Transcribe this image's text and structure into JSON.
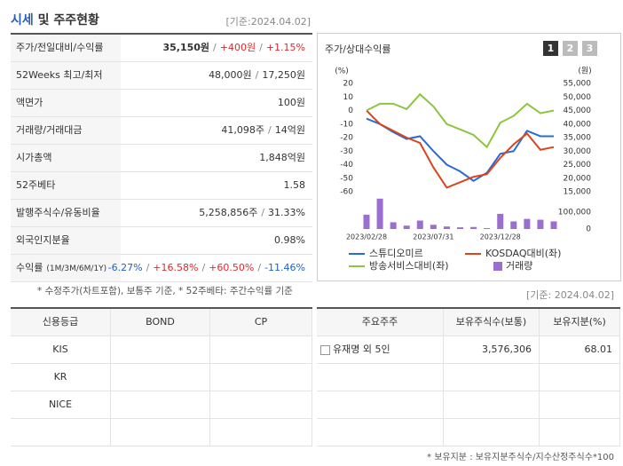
{
  "header": {
    "title": [
      "시세",
      "및 주주현황"
    ],
    "date": "[기준:2024.04.02]"
  },
  "quote_table": {
    "rows": [
      {
        "label": "주가/전일대비/수익률",
        "value": [
          "35,150원",
          "/",
          "+400원",
          "/",
          "+1.15%"
        ]
      },
      {
        "label": "52Weeks 최고/최저",
        "value": [
          "48,000원",
          "/",
          "17,250원"
        ]
      },
      {
        "label": "액면가",
        "value": [
          "100원"
        ]
      },
      {
        "label": "거래량/거래대금",
        "value": [
          "41,098주",
          "/",
          "14억원"
        ]
      },
      {
        "label": "시가총액",
        "value": [
          "1,848억원"
        ]
      },
      {
        "label": "52주베타",
        "value": [
          "1.58"
        ]
      },
      {
        "label": "발행주식수/유동비율",
        "value": [
          "5,258,856주",
          "/",
          "31.33%"
        ]
      },
      {
        "label": "외국인지분율",
        "value": [
          "0.98%"
        ]
      },
      {
        "label": "수익률",
        "sub": "(1M/3M/6M/1Y)",
        "value": [
          "-6.27%",
          "/",
          "+16.58%",
          "/",
          "+60.50%",
          "/",
          "-11.46%"
        ]
      }
    ]
  },
  "footnote": "* 수정주가(차트포함), 보통주 기준, * 52주베타: 주간수익률 기준",
  "chart_data": {
    "type": "line",
    "title": "주가/상대수익률",
    "buttons": [
      "1",
      "2",
      "3"
    ],
    "ylabel": "(%)",
    "y2label": "(원)",
    "categories": [
      "2023/02/28",
      null,
      null,
      null,
      null,
      "2023/07/31",
      null,
      null,
      null,
      null,
      "2023/12/28",
      null,
      null,
      null,
      null
    ],
    "ylim": [
      -60,
      20
    ],
    "yticks": [
      20,
      10,
      0,
      -10,
      -20,
      -30,
      -40,
      -50,
      -60
    ],
    "y2lim": [
      15000,
      55000
    ],
    "y2ticks": [
      {
        "value": 55000,
        "label": "55,000"
      },
      {
        "value": 50000,
        "label": "50,000"
      },
      {
        "value": 45000,
        "label": "45,000"
      },
      {
        "value": 40000,
        "label": "40,000"
      },
      {
        "value": 35000,
        "label": "35,000"
      },
      {
        "value": 30000,
        "label": "30,000"
      },
      {
        "value": 25000,
        "label": "25,000"
      },
      {
        "value": 20000,
        "label": "20,000"
      },
      {
        "value": 15000,
        "label": "15,000"
      }
    ],
    "y3lim": [
      0,
      200000
    ],
    "y3ticks": [
      0,
      {
        "value": 100000,
        "label": "100,000"
      }
    ],
    "series": [
      {
        "name": "스튜디오미르",
        "color": "#2a6ad6",
        "values": [
          -6,
          -10,
          -16,
          -21,
          -19,
          -30,
          -40,
          -45,
          -52,
          -46,
          -32,
          -30,
          -15,
          -19,
          -19
        ]
      },
      {
        "name": "KOSDAQ대비(좌)",
        "color": "#d9451e",
        "values": [
          0,
          -10,
          -15,
          -20,
          -24,
          -42,
          -57,
          -53,
          -49,
          -47,
          -35,
          -25,
          -17,
          -29,
          -27
        ]
      },
      {
        "name": "방송서비스대비(좌)",
        "color": "#8cc63e",
        "values": [
          0,
          5,
          5,
          1,
          12,
          3,
          -10,
          -14,
          -18,
          -27,
          -9,
          -4,
          5,
          -2,
          0
        ]
      },
      {
        "name": "거래량",
        "color": "#9b6fcf",
        "type": "bar",
        "axis": "y3",
        "values": [
          85000,
          180000,
          40000,
          20000,
          50000,
          25000,
          15000,
          10000,
          12000,
          5000,
          90000,
          45000,
          60000,
          55000,
          45000
        ]
      }
    ]
  },
  "date2": "[기준: 2024.04.02]",
  "credit_table": {
    "columns": [
      "신용등급",
      "BOND",
      "CP"
    ],
    "rows": [
      "KIS",
      "KR",
      "NICE"
    ]
  },
  "holders_table": {
    "columns": [
      "주요주주",
      "보유주식수(보통)",
      "보유지분(%)"
    ],
    "rows": [
      [
        "유재명 외 5인",
        "3,576,306",
        "68.01"
      ]
    ]
  },
  "holders_note": "* 보유지분 : 보유지분주식수/지수산정주식수*100"
}
